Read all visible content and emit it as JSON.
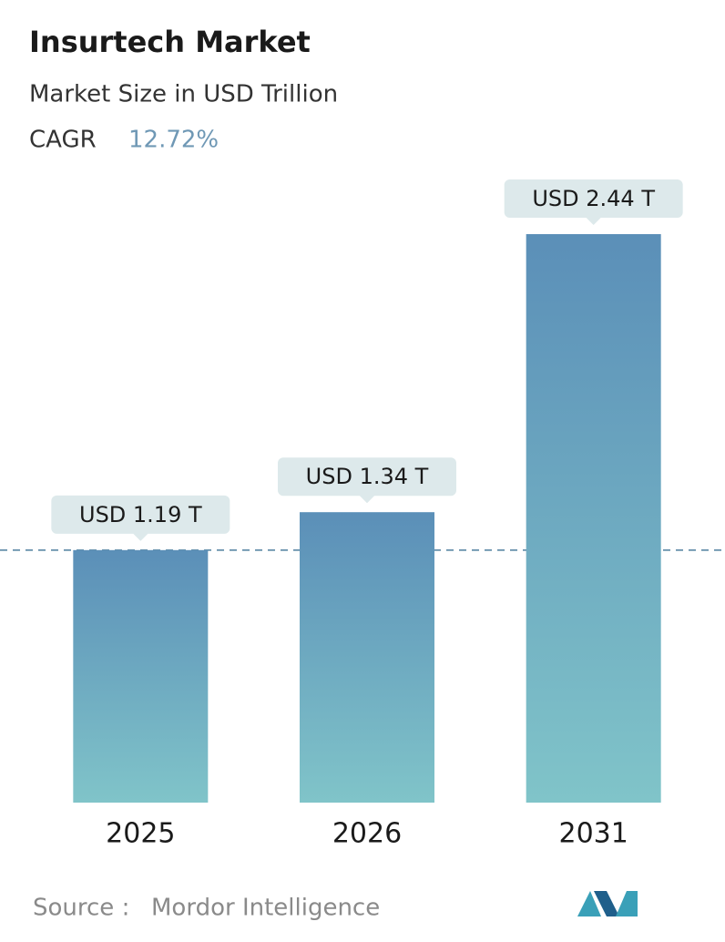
{
  "chart_data": {
    "type": "bar",
    "title": "Insurtech Market",
    "subtitle": "Market Size in USD Trillion",
    "cagr_label": "CAGR",
    "cagr": "12.72%",
    "categories": [
      "2025",
      "2026",
      "2031"
    ],
    "values": [
      1.19,
      1.34,
      2.44
    ],
    "value_labels": [
      "USD 1.19 T",
      "USD 1.34 T",
      "USD 2.44 T"
    ],
    "color": [
      "#5b8fb8",
      "#80c4c9"
    ],
    "source_label": "Source :",
    "source": "Mordor Intelligence"
  }
}
